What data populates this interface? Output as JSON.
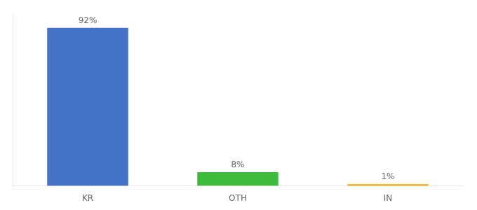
{
  "chart_data": {
    "type": "bar",
    "categories": [
      "KR",
      "OTH",
      "IN"
    ],
    "values": [
      92,
      8,
      1
    ],
    "value_labels": [
      "92%",
      "8%",
      "1%"
    ],
    "data_labels": true,
    "colors": [
      "#4472c4",
      "#3dbb3d",
      "#f0a500"
    ],
    "ylim": [
      0,
      100
    ],
    "grid": false,
    "tick_labels": "x"
  }
}
